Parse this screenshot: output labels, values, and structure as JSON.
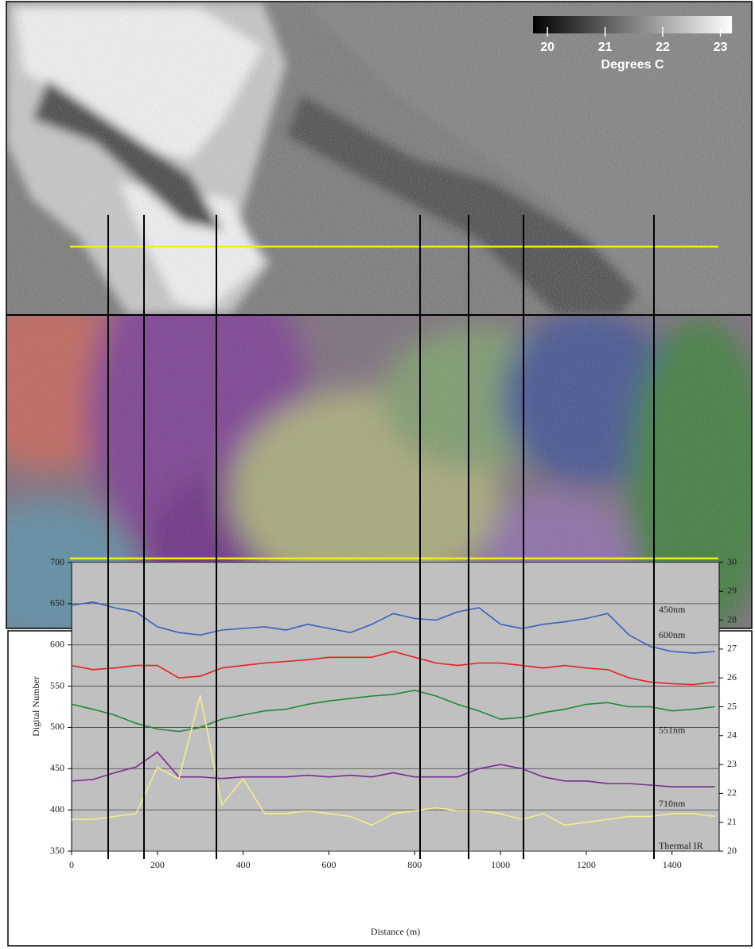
{
  "chart_data": {
    "type": "line",
    "x_label": "Distance (m)",
    "y_label": "Digital Number",
    "x": [
      0,
      50,
      100,
      150,
      200,
      250,
      300,
      350,
      400,
      450,
      500,
      550,
      600,
      650,
      700,
      750,
      800,
      850,
      900,
      950,
      1000,
      1050,
      1100,
      1150,
      1200,
      1250,
      1300,
      1350,
      1400,
      1450,
      1500
    ],
    "series": [
      {
        "name": "450nm",
        "color": "#3a5fc0",
        "values": [
          648,
          652,
          645,
          640,
          622,
          615,
          612,
          618,
          620,
          622,
          618,
          625,
          620,
          615,
          625,
          638,
          632,
          630,
          640,
          645,
          625,
          620,
          625,
          628,
          632,
          638,
          612,
          598,
          592,
          590,
          592
        ]
      },
      {
        "name": "600nm",
        "color": "#e8201e",
        "values": [
          575,
          570,
          572,
          575,
          575,
          560,
          562,
          572,
          575,
          578,
          580,
          582,
          585,
          585,
          585,
          592,
          585,
          578,
          575,
          578,
          578,
          575,
          572,
          575,
          572,
          570,
          560,
          555,
          553,
          552,
          555
        ]
      },
      {
        "name": "551nm",
        "color": "#1a8a3a",
        "values": [
          528,
          522,
          515,
          505,
          498,
          495,
          500,
          510,
          515,
          520,
          522,
          528,
          532,
          535,
          538,
          540,
          545,
          538,
          528,
          520,
          510,
          512,
          518,
          522,
          528,
          530,
          525,
          525,
          520,
          522,
          525
        ]
      },
      {
        "name": "710nm",
        "color": "#7a2a90",
        "values": [
          435,
          437,
          445,
          452,
          470,
          440,
          440,
          438,
          440,
          440,
          440,
          442,
          440,
          442,
          440,
          445,
          440,
          440,
          440,
          450,
          455,
          450,
          440,
          435,
          435,
          432,
          432,
          430,
          428,
          428,
          428
        ]
      },
      {
        "name": "Thermal IR",
        "color": "#f4ee88",
        "axis": "y2",
        "values": [
          21.1,
          21.1,
          21.2,
          21.3,
          22.9,
          22.5,
          25.4,
          21.6,
          22.5,
          21.3,
          21.3,
          21.4,
          21.3,
          21.2,
          20.9,
          21.3,
          21.4,
          21.5,
          21.4,
          21.4,
          21.3,
          21.1,
          21.3,
          20.9,
          21.0,
          21.1,
          21.2,
          21.2,
          21.3,
          21.3,
          21.2
        ]
      }
    ],
    "xlim": [
      0,
      1510
    ],
    "xticks": [
      0,
      200,
      400,
      600,
      800,
      1000,
      1200,
      1400
    ],
    "ylim": [
      350,
      700
    ],
    "yticks": [
      350,
      400,
      450,
      500,
      550,
      600,
      650,
      700
    ],
    "y2lim": [
      20,
      30
    ],
    "y2ticks": [
      20,
      21,
      22,
      23,
      24,
      25,
      26,
      27,
      28,
      29,
      30
    ],
    "grid": true
  },
  "colorbar": {
    "label": "Degrees C",
    "lim": [
      19.75,
      23.2
    ],
    "ticks": [
      20,
      21,
      22,
      23
    ]
  }
}
